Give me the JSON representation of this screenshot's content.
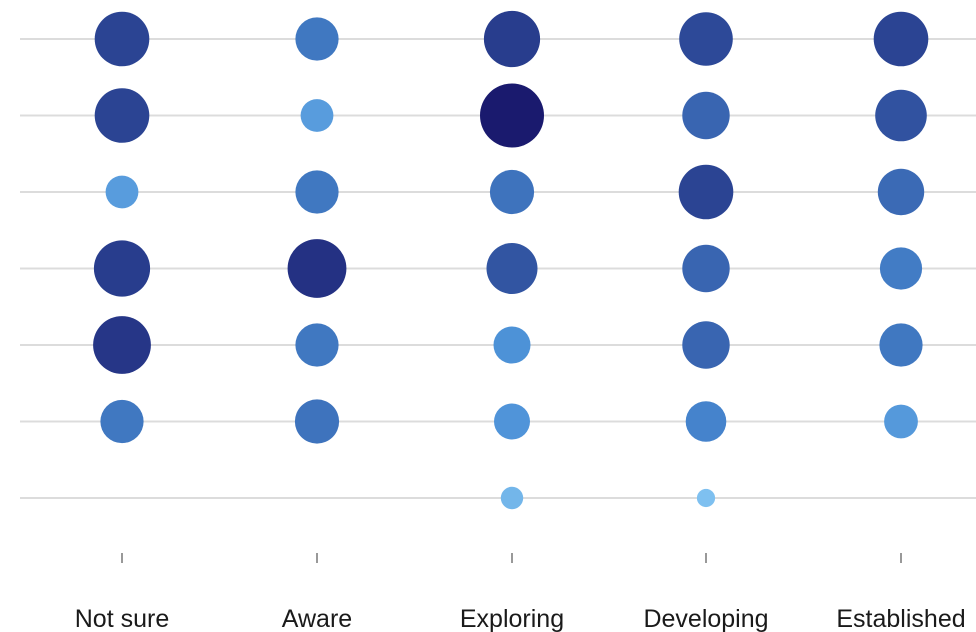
{
  "chart_data": {
    "type": "scatter",
    "subtype": "bubble-matrix",
    "title": "",
    "xlabel": "",
    "ylabel": "",
    "categories": [
      "Not sure",
      "Aware",
      "Exploring",
      "Developing",
      "Established"
    ],
    "rows": 7,
    "grid": true,
    "legend": "none",
    "color_scale": {
      "low": "#8fd0f8",
      "mid": "#4a8fd6",
      "high": "#1a1a6e"
    },
    "cells": [
      {
        "category": "Not sure",
        "row": 1,
        "value": 0.82
      },
      {
        "category": "Not sure",
        "row": 2,
        "value": 0.82
      },
      {
        "category": "Not sure",
        "row": 3,
        "value": 0.4
      },
      {
        "category": "Not sure",
        "row": 4,
        "value": 0.85
      },
      {
        "category": "Not sure",
        "row": 5,
        "value": 0.88
      },
      {
        "category": "Not sure",
        "row": 6,
        "value": 0.6
      },
      {
        "category": "Aware",
        "row": 1,
        "value": 0.6
      },
      {
        "category": "Aware",
        "row": 2,
        "value": 0.4
      },
      {
        "category": "Aware",
        "row": 3,
        "value": 0.6
      },
      {
        "category": "Aware",
        "row": 4,
        "value": 0.9
      },
      {
        "category": "Aware",
        "row": 5,
        "value": 0.6
      },
      {
        "category": "Aware",
        "row": 6,
        "value": 0.62
      },
      {
        "category": "Exploring",
        "row": 1,
        "value": 0.85
      },
      {
        "category": "Exploring",
        "row": 2,
        "value": 1.0
      },
      {
        "category": "Exploring",
        "row": 3,
        "value": 0.62
      },
      {
        "category": "Exploring",
        "row": 4,
        "value": 0.75
      },
      {
        "category": "Exploring",
        "row": 5,
        "value": 0.48
      },
      {
        "category": "Exploring",
        "row": 6,
        "value": 0.46
      },
      {
        "category": "Exploring",
        "row": 7,
        "value": 0.2
      },
      {
        "category": "Developing",
        "row": 1,
        "value": 0.8
      },
      {
        "category": "Developing",
        "row": 2,
        "value": 0.68
      },
      {
        "category": "Developing",
        "row": 3,
        "value": 0.82
      },
      {
        "category": "Developing",
        "row": 4,
        "value": 0.68
      },
      {
        "category": "Developing",
        "row": 5,
        "value": 0.68
      },
      {
        "category": "Developing",
        "row": 6,
        "value": 0.55
      },
      {
        "category": "Developing",
        "row": 7,
        "value": 0.12
      },
      {
        "category": "Established",
        "row": 1,
        "value": 0.82
      },
      {
        "category": "Established",
        "row": 2,
        "value": 0.76
      },
      {
        "category": "Established",
        "row": 3,
        "value": 0.66
      },
      {
        "category": "Established",
        "row": 4,
        "value": 0.58
      },
      {
        "category": "Established",
        "row": 5,
        "value": 0.6
      },
      {
        "category": "Established",
        "row": 6,
        "value": 0.42
      }
    ]
  }
}
